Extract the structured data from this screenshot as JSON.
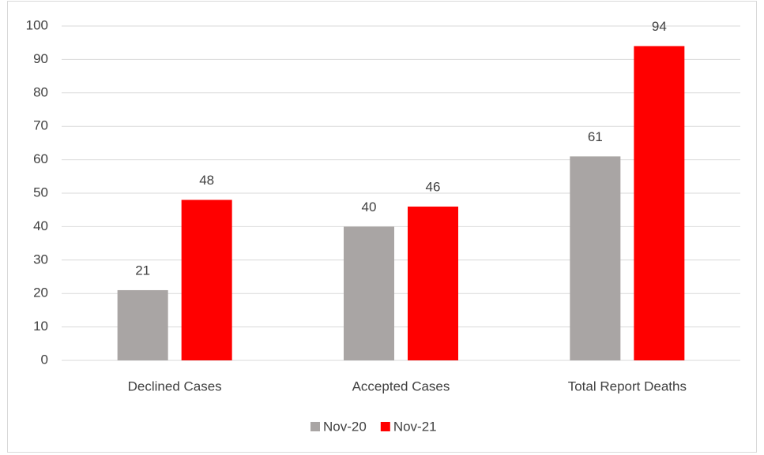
{
  "chart_data": {
    "type": "bar",
    "categories": [
      "Declined Cases",
      "Accepted Cases",
      "Total Report Deaths"
    ],
    "series": [
      {
        "name": "Nov-20",
        "color": "#a9a5a4",
        "values": [
          21,
          40,
          61
        ]
      },
      {
        "name": "Nov-21",
        "color": "#ff0000",
        "values": [
          48,
          46,
          94
        ]
      }
    ],
    "ylim": [
      0,
      100
    ],
    "yticks": [
      0,
      10,
      20,
      30,
      40,
      50,
      60,
      70,
      80,
      90,
      100
    ],
    "grid": true,
    "legend": "bottom"
  }
}
